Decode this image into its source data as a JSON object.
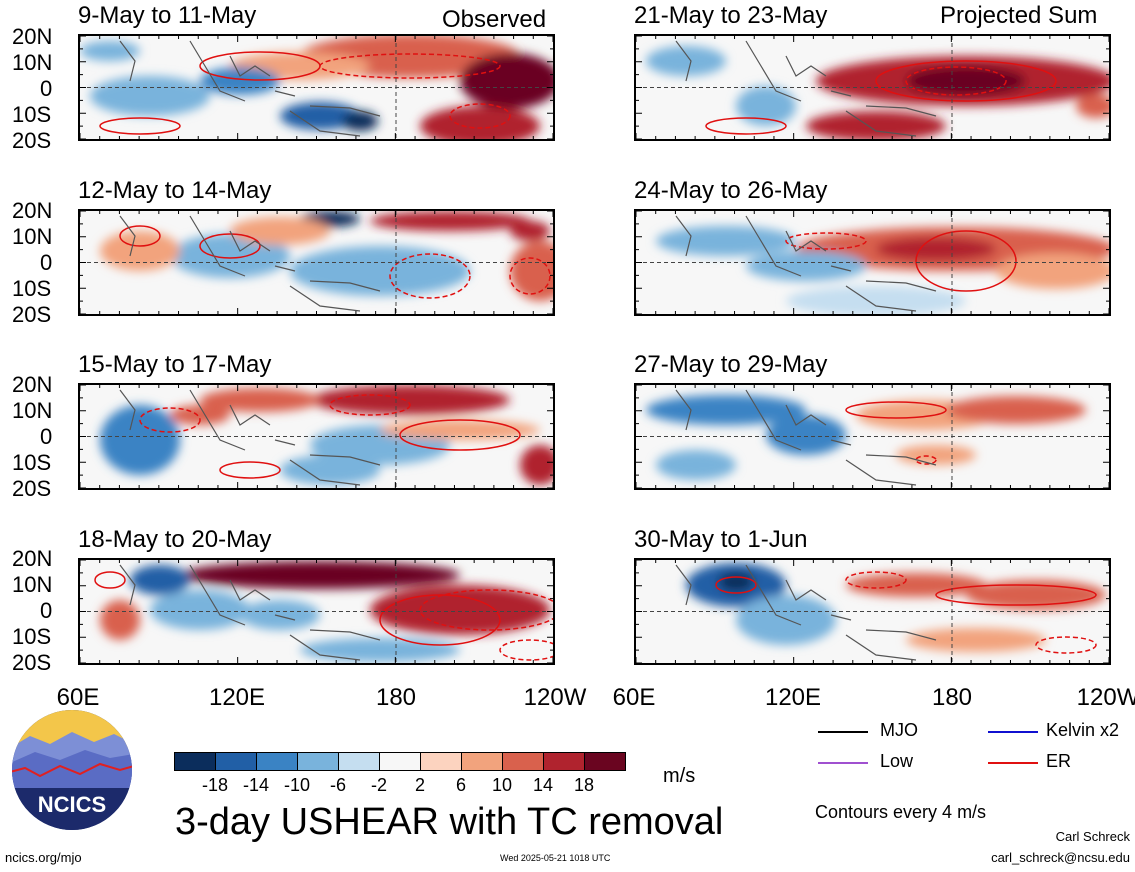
{
  "panels": {
    "observed": [
      {
        "title": "9-May to 11-May"
      },
      {
        "title": "12-May to 14-May"
      },
      {
        "title": "15-May to 17-May"
      },
      {
        "title": "18-May to 20-May"
      }
    ],
    "projected": [
      {
        "title": "21-May to 23-May"
      },
      {
        "title": "24-May to 26-May"
      },
      {
        "title": "27-May to 29-May"
      },
      {
        "title": "30-May to 1-Jun"
      }
    ],
    "observed_label": "Observed",
    "projected_label": "Projected Sum"
  },
  "lat_labels": [
    "20N",
    "10N",
    "0",
    "10S",
    "20S"
  ],
  "lon_labels": [
    "60E",
    "120E",
    "180",
    "120W"
  ],
  "colorbar": {
    "ticks": [
      "-18",
      "-14",
      "-10",
      "-6",
      "-2",
      "2",
      "6",
      "10",
      "14",
      "18"
    ],
    "colors": [
      "#0b2d5c",
      "#215fa6",
      "#3a83c4",
      "#79b3dc",
      "#c5def0",
      "#f7f7f7",
      "#fcd3bf",
      "#f2a37d",
      "#d9614d",
      "#b0232e",
      "#6a0520"
    ],
    "unit": "m/s"
  },
  "title": "3-day USHEAR with TC removal",
  "legend": {
    "items": [
      {
        "label": "MJO",
        "color": "#000000"
      },
      {
        "label": "Kelvin x2",
        "color": "#1010d0"
      },
      {
        "label": "Low",
        "color": "#a050d0"
      },
      {
        "label": "ER",
        "color": "#e01010"
      }
    ],
    "contour_note": "Contours every 4 m/s"
  },
  "logo": {
    "text": "NCICS"
  },
  "footer": {
    "url": "ncics.org/mjo",
    "timestamp": "Wed 2025-05-21 1018 UTC",
    "author": "Carl Schreck",
    "email": "carl_schreck@ncsu.edu"
  }
}
